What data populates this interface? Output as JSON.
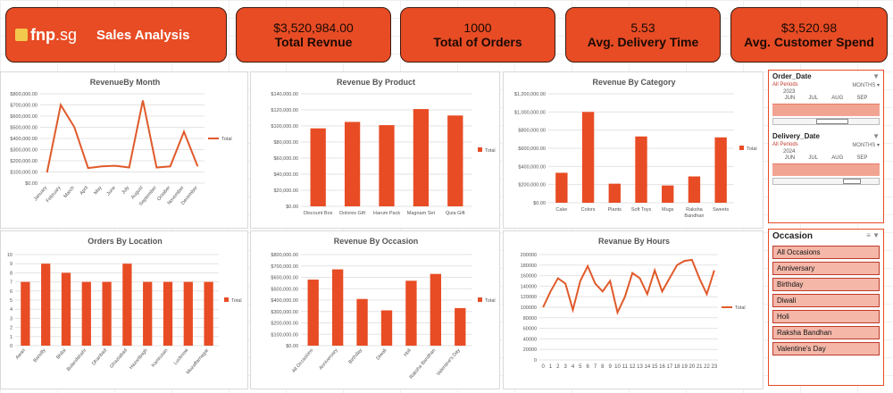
{
  "brand": {
    "logo_fnp": "fnp",
    "logo_sg": ".sg",
    "title": "Sales Analysis"
  },
  "kpis": [
    {
      "value": "$3,520,984.00",
      "label": "Total Revnue"
    },
    {
      "value": "1000",
      "label": "Total of Orders"
    },
    {
      "value": "5.53",
      "label": "Avg. Delivery Time"
    },
    {
      "value": "$3,520.98",
      "label": "Avg. Customer Spend"
    }
  ],
  "legend_label": "Total",
  "colors": {
    "accent": "#e84c24",
    "kpi_bg": "#e84c24",
    "line": "#e05a2b"
  },
  "chart_data": [
    {
      "id": "month",
      "type": "line",
      "title": "RevenueBy Month",
      "categories": [
        "January",
        "February",
        "March",
        "April",
        "May",
        "June",
        "July",
        "August",
        "September",
        "October",
        "November",
        "December"
      ],
      "values": [
        95000,
        700000,
        500000,
        135000,
        150000,
        155000,
        140000,
        740000,
        140000,
        150000,
        460000,
        150000
      ],
      "ylim": [
        0,
        800000
      ],
      "ticks": [
        "$0.00",
        "$100,000.00",
        "$200,000.00",
        "$300,000.00",
        "$400,000.00",
        "$500,000.00",
        "$600,000.00",
        "$700,000.00",
        "$800,000.00"
      ]
    },
    {
      "id": "product",
      "type": "bar",
      "title": "Revenue By Product",
      "categories": [
        "Discount Box",
        "Dolores Gift",
        "Harum Pack",
        "Magnam Set",
        "Quia Gift"
      ],
      "values": [
        97000,
        105000,
        101000,
        121000,
        113000
      ],
      "ylim": [
        0,
        140000
      ],
      "ticks": [
        "$0.00",
        "$20,000.00",
        "$40,000.00",
        "$60,000.00",
        "$80,000.00",
        "$100,000.00",
        "$120,000.00",
        "$140,000.00"
      ]
    },
    {
      "id": "category",
      "type": "bar",
      "title": "Revenue By Category",
      "categories": [
        "Cake",
        "Colors",
        "Plants",
        "Soft Toys",
        "Mugs",
        "Raksha Bandhan",
        "Sweets"
      ],
      "values": [
        330000,
        1000000,
        210000,
        730000,
        190000,
        290000,
        720000
      ],
      "ylim": [
        0,
        1200000
      ],
      "ticks": [
        "$0.00",
        "$200,000.00",
        "$400,000.00",
        "$600,000.00",
        "$800,000.00",
        "$1,000,000.00",
        "$1,200,000.00"
      ]
    },
    {
      "id": "location",
      "type": "bar",
      "title": "Orders By Location",
      "categories": [
        "Awari",
        "Bareilly",
        "Bhilai",
        "Bulandshahr",
        "Dhanbad",
        "Ghaziabad",
        "Hazaribagh",
        "Kamrusan",
        "Lucknow",
        "Muzaffarnagar"
      ],
      "values": [
        7,
        9,
        8,
        7,
        7,
        9,
        7,
        7,
        7,
        7
      ],
      "ylim": [
        0,
        10
      ],
      "ticks": [
        "0",
        "1",
        "2",
        "3",
        "4",
        "5",
        "6",
        "7",
        "8",
        "9",
        "10"
      ]
    },
    {
      "id": "occasion",
      "type": "bar",
      "title": "Revenue By Occasion",
      "categories": [
        "All Occasions",
        "Anniversary",
        "Birthday",
        "Diwali",
        "Holi",
        "Raksha Bandhan",
        "Valentine's Day"
      ],
      "values": [
        580000,
        670000,
        410000,
        310000,
        570000,
        630000,
        330000
      ],
      "ylim": [
        0,
        800000
      ],
      "ticks": [
        "$0.00",
        "$100,000.00",
        "$200,000.00",
        "$300,000.00",
        "$400,000.00",
        "$500,000.00",
        "$600,000.00",
        "$700,000.00",
        "$800,000.00"
      ]
    },
    {
      "id": "hours",
      "type": "line",
      "title": "Revanue By Hours",
      "categories": [
        "0",
        "1",
        "2",
        "3",
        "4",
        "5",
        "6",
        "7",
        "8",
        "9",
        "10",
        "11",
        "12",
        "13",
        "14",
        "15",
        "16",
        "17",
        "18",
        "19",
        "20",
        "21",
        "22",
        "23"
      ],
      "values": [
        100000,
        130000,
        155000,
        145000,
        95000,
        150000,
        178000,
        145000,
        130000,
        150000,
        90000,
        120000,
        165000,
        155000,
        125000,
        170000,
        130000,
        155000,
        180000,
        188000,
        190000,
        155000,
        125000,
        170000
      ],
      "ylim": [
        0,
        200000
      ],
      "ticks": [
        "0",
        "20000",
        "40000",
        "60000",
        "80000",
        "100000",
        "120000",
        "140000",
        "160000",
        "180000",
        "200000"
      ]
    }
  ],
  "order_slicer": {
    "title": "Order_Date",
    "periods": "All Periods",
    "unit": "MONTHS",
    "year": "2023",
    "months": [
      "JUN",
      "JUL",
      "AUG",
      "SEP"
    ]
  },
  "delivery_slicer": {
    "title": "Delivery_Date",
    "periods": "All Periods",
    "unit": "MONTHS",
    "year": "2024",
    "months": [
      "JUN",
      "JUL",
      "AUG",
      "SEP"
    ]
  },
  "occasion_slicer": {
    "title": "Occasion",
    "items": [
      "All Occasions",
      "Anniversary",
      "Birthday",
      "Diwali",
      "Holi",
      "Raksha Bandhan",
      "Valentine's Day"
    ]
  }
}
